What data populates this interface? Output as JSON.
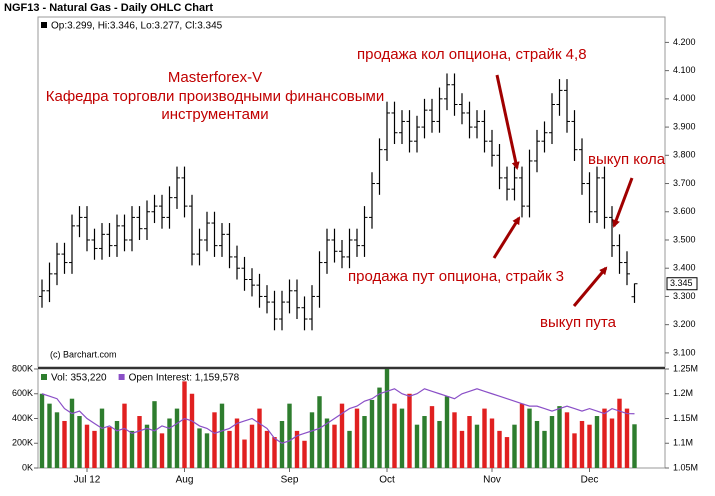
{
  "chart_data": [
    {
      "type": "ohlc",
      "title": "NGF13 - Natural Gas - Daily OHLC Chart",
      "legend_text": "Op:3.299, Hi:3.346, Lo:3.277, Cl:3.345",
      "credit": "(c) Barchart.com",
      "color": "#000000",
      "annotations": [
        "Masterforex-V",
        "Кафедра торговли производными финансовыми",
        "инструментами",
        "продажа кол опциона, страйк 4,8",
        "продажа пут опциона, страйк 3",
        "выкуп кола",
        "выкуп пута"
      ],
      "annotation_color": "#c00000",
      "open": [
        3.3,
        3.32,
        3.38,
        3.45,
        3.42,
        3.55,
        3.58,
        3.5,
        3.47,
        3.52,
        3.48,
        3.55,
        3.5,
        3.58,
        3.54,
        3.6,
        3.62,
        3.58,
        3.65,
        3.72,
        3.62,
        3.45,
        3.5,
        3.56,
        3.48,
        3.52,
        3.44,
        3.4,
        3.36,
        3.34,
        3.3,
        3.28,
        3.22,
        3.28,
        3.32,
        3.26,
        3.22,
        3.3,
        3.42,
        3.5,
        3.46,
        3.44,
        3.5,
        3.48,
        3.58,
        3.7,
        3.82,
        3.95,
        3.88,
        3.92,
        3.85,
        3.9,
        3.96,
        3.92,
        4.0,
        4.05,
        3.98,
        3.95,
        3.9,
        3.92,
        3.85,
        3.8,
        3.72,
        3.68,
        3.72,
        3.62,
        3.78,
        3.85,
        3.88,
        3.98,
        4.03,
        3.92,
        3.82,
        3.7,
        3.6,
        3.72,
        3.58,
        3.48,
        3.42,
        3.299
      ],
      "high": [
        3.36,
        3.42,
        3.49,
        3.49,
        3.59,
        3.62,
        3.62,
        3.54,
        3.56,
        3.56,
        3.59,
        3.59,
        3.62,
        3.62,
        3.64,
        3.66,
        3.66,
        3.69,
        3.76,
        3.76,
        3.66,
        3.54,
        3.6,
        3.6,
        3.56,
        3.56,
        3.48,
        3.44,
        3.4,
        3.38,
        3.34,
        3.32,
        3.32,
        3.36,
        3.36,
        3.3,
        3.34,
        3.46,
        3.54,
        3.54,
        3.5,
        3.54,
        3.54,
        3.62,
        3.74,
        3.86,
        3.99,
        3.99,
        3.96,
        3.96,
        3.94,
        4.0,
        4.0,
        4.04,
        4.09,
        4.09,
        4.02,
        3.99,
        3.96,
        3.96,
        3.89,
        3.84,
        3.76,
        3.76,
        3.76,
        3.82,
        3.89,
        3.92,
        4.02,
        4.07,
        4.07,
        3.96,
        3.86,
        3.74,
        3.76,
        3.76,
        3.62,
        3.52,
        3.46,
        3.346
      ],
      "low": [
        3.26,
        3.28,
        3.34,
        3.38,
        3.38,
        3.51,
        3.46,
        3.43,
        3.43,
        3.44,
        3.44,
        3.46,
        3.46,
        3.5,
        3.5,
        3.56,
        3.54,
        3.54,
        3.61,
        3.58,
        3.41,
        3.41,
        3.46,
        3.44,
        3.44,
        3.4,
        3.36,
        3.32,
        3.3,
        3.26,
        3.24,
        3.18,
        3.18,
        3.24,
        3.22,
        3.18,
        3.18,
        3.26,
        3.38,
        3.42,
        3.4,
        3.4,
        3.44,
        3.44,
        3.54,
        3.66,
        3.78,
        3.84,
        3.84,
        3.81,
        3.81,
        3.86,
        3.88,
        3.88,
        3.96,
        3.94,
        3.91,
        3.86,
        3.86,
        3.81,
        3.76,
        3.68,
        3.64,
        3.64,
        3.58,
        3.58,
        3.74,
        3.81,
        3.84,
        3.94,
        3.88,
        3.78,
        3.66,
        3.56,
        3.56,
        3.54,
        3.44,
        3.38,
        3.34,
        3.277
      ],
      "close": [
        3.32,
        3.38,
        3.45,
        3.42,
        3.55,
        3.58,
        3.5,
        3.47,
        3.52,
        3.48,
        3.55,
        3.5,
        3.58,
        3.54,
        3.6,
        3.62,
        3.58,
        3.65,
        3.72,
        3.62,
        3.45,
        3.5,
        3.56,
        3.48,
        3.52,
        3.44,
        3.4,
        3.36,
        3.34,
        3.3,
        3.28,
        3.22,
        3.28,
        3.32,
        3.26,
        3.22,
        3.3,
        3.42,
        3.5,
        3.46,
        3.44,
        3.5,
        3.48,
        3.58,
        3.7,
        3.82,
        3.95,
        3.88,
        3.92,
        3.85,
        3.9,
        3.96,
        3.92,
        4.0,
        4.05,
        3.98,
        3.95,
        3.9,
        3.92,
        3.85,
        3.8,
        3.72,
        3.68,
        3.72,
        3.62,
        3.78,
        3.85,
        3.88,
        3.98,
        4.03,
        3.92,
        3.82,
        3.7,
        3.6,
        3.72,
        3.58,
        3.48,
        3.42,
        3.38,
        3.345
      ],
      "ylim": [
        3.05,
        4.29
      ],
      "yticks": [
        {
          "value": 3.1,
          "label": "3.100"
        },
        {
          "value": 3.2,
          "label": "3.200"
        },
        {
          "value": 3.3,
          "label": "3.300"
        },
        {
          "value": 3.4,
          "label": "3.400"
        },
        {
          "value": 3.5,
          "label": "3.500"
        },
        {
          "value": 3.6,
          "label": "3.600"
        },
        {
          "value": 3.7,
          "label": "3.700"
        },
        {
          "value": 3.8,
          "label": "3.800"
        },
        {
          "value": 3.9,
          "label": "3.900"
        },
        {
          "value": 4.0,
          "label": "4.000"
        },
        {
          "value": 4.1,
          "label": "4.100"
        },
        {
          "value": 4.2,
          "label": "4.200"
        }
      ],
      "grid": false
    },
    {
      "type": "bar",
      "up_color": "#2e7d2e",
      "down_color": "#e02020",
      "categories": [
        null,
        null,
        null,
        null,
        null,
        null,
        "Jul 12",
        null,
        null,
        null,
        null,
        null,
        null,
        null,
        null,
        null,
        null,
        null,
        null,
        "Aug",
        null,
        null,
        null,
        null,
        null,
        null,
        null,
        null,
        null,
        null,
        null,
        null,
        null,
        "Sep",
        null,
        null,
        null,
        null,
        null,
        null,
        null,
        null,
        null,
        null,
        null,
        null,
        "Oct",
        null,
        null,
        null,
        null,
        null,
        null,
        null,
        null,
        null,
        null,
        null,
        null,
        null,
        "Nov",
        null,
        null,
        null,
        null,
        null,
        null,
        null,
        null,
        null,
        null,
        null,
        null,
        "Dec",
        null,
        null,
        null,
        null,
        null,
        null
      ],
      "series": [
        {
          "name": "Vol: 353,220",
          "color": "#2e7d2e",
          "values": [
            600000,
            520000,
            450000,
            380000,
            560000,
            420000,
            350000,
            300000,
            480000,
            330000,
            380000,
            520000,
            300000,
            420000,
            350000,
            540000,
            280000,
            400000,
            480000,
            700000,
            600000,
            320000,
            280000,
            450000,
            520000,
            300000,
            400000,
            230000,
            350000,
            480000,
            300000,
            250000,
            380000,
            520000,
            300000,
            220000,
            450000,
            580000,
            400000,
            350000,
            520000,
            300000,
            480000,
            420000,
            550000,
            650000,
            800000,
            520000,
            480000,
            600000,
            350000,
            420000,
            500000,
            380000,
            580000,
            450000,
            300000,
            420000,
            350000,
            480000,
            400000,
            300000,
            250000,
            350000,
            520000,
            480000,
            380000,
            300000,
            420000,
            500000,
            450000,
            280000,
            380000,
            350000,
            420000,
            480000,
            400000,
            560000,
            480000,
            353220
          ]
        },
        {
          "name": "Open Interest: 1,159,578",
          "color": "#8a4fc7",
          "axis": "y2",
          "values": [
            1200000,
            1195000,
            1190000,
            1170000,
            1160000,
            1165000,
            1150000,
            1140000,
            1130000,
            1135000,
            1125000,
            1130000,
            1120000,
            1125000,
            1130000,
            1125000,
            1135000,
            1130000,
            1140000,
            1150000,
            1145000,
            1135000,
            1130000,
            1120000,
            1125000,
            1130000,
            1140000,
            1145000,
            1150000,
            1140000,
            1130000,
            1110000,
            1100000,
            1105000,
            1115000,
            1120000,
            1125000,
            1130000,
            1140000,
            1150000,
            1160000,
            1170000,
            1175000,
            1185000,
            1190000,
            1200000,
            1205000,
            1210000,
            1200000,
            1195000,
            1200000,
            1210000,
            1205000,
            1200000,
            1195000,
            1190000,
            1200000,
            1205000,
            1210000,
            1205000,
            1200000,
            1195000,
            1190000,
            1185000,
            1180000,
            1175000,
            1175000,
            1170000,
            1165000,
            1170000,
            1175000,
            1170000,
            1165000,
            1170000,
            1165000,
            1160000,
            1170000,
            1165000,
            1160000,
            1159578
          ]
        }
      ],
      "ylim": [
        0,
        800000
      ],
      "yticks": [
        {
          "value": 0,
          "label": "0K"
        },
        {
          "value": 200000,
          "label": "200K"
        },
        {
          "value": 400000,
          "label": "400K"
        },
        {
          "value": 600000,
          "label": "600K"
        },
        {
          "value": 800000,
          "label": "800K"
        }
      ],
      "y2lim": [
        1050000,
        1250000
      ],
      "y2ticks": [
        {
          "value": 1050000,
          "label": "1.05M"
        },
        {
          "value": 1100000,
          "label": "1.1M"
        },
        {
          "value": 1150000,
          "label": "1.15M"
        },
        {
          "value": 1200000,
          "label": "1.2M"
        },
        {
          "value": 1250000,
          "label": "1.25M"
        }
      ]
    }
  ]
}
